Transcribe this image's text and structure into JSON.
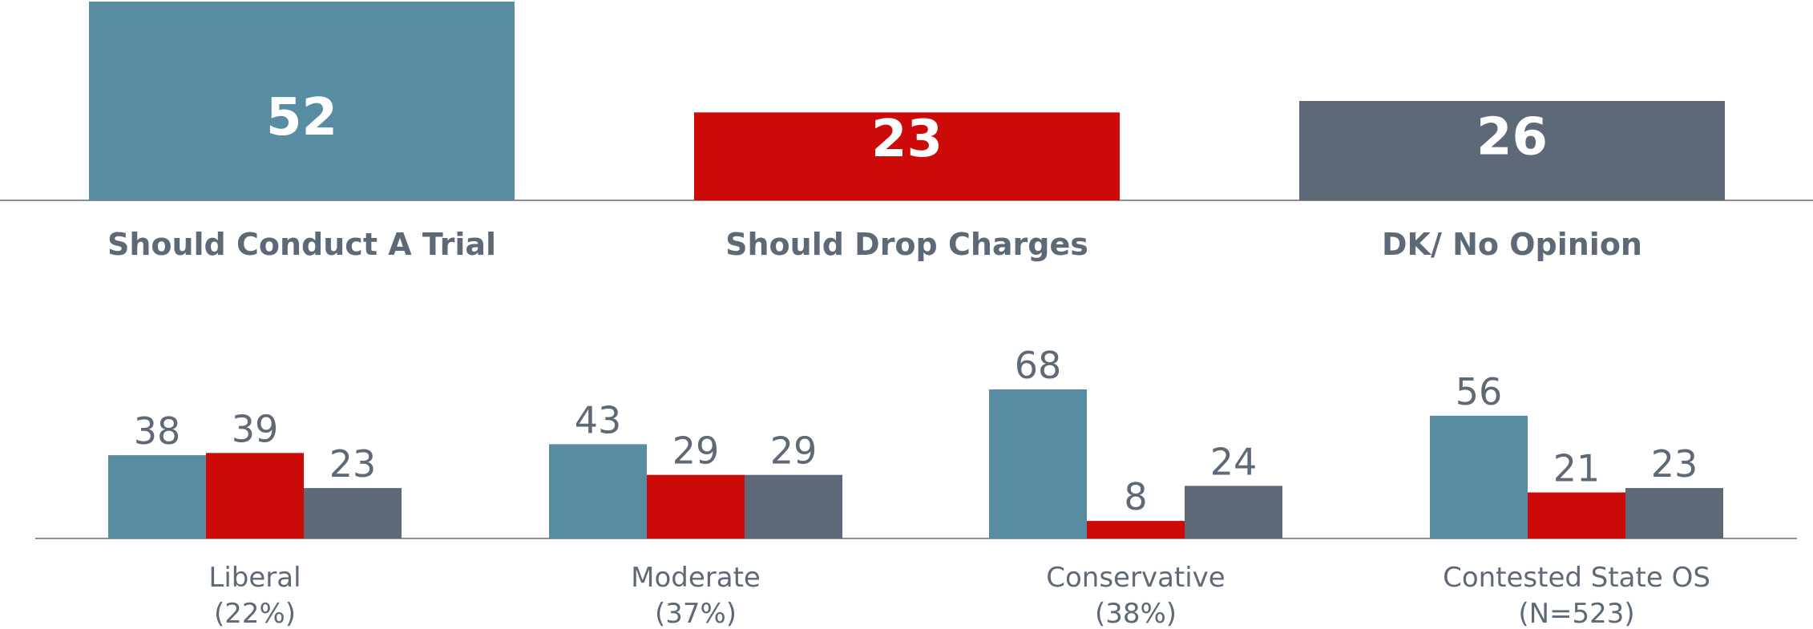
{
  "colors": {
    "trial": "#588ca2",
    "drop": "#cc0a07",
    "dk": "#5e6978",
    "text": "#5e6978",
    "axis": "#8b8f95"
  },
  "chart_data": [
    {
      "type": "bar",
      "categories": [
        "Should Conduct A Trial",
        "Should Drop Charges",
        "DK/ No Opinion"
      ],
      "values": [
        52,
        23,
        26
      ],
      "ylim": [
        0,
        52
      ],
      "grid": false
    },
    {
      "type": "bar",
      "categories": [
        "Liberal",
        "Moderate",
        "Conservative",
        "Contested State OS"
      ],
      "category_sublabels": [
        "(22%)",
        "(37%)",
        "(38%)",
        "(N=523)"
      ],
      "series": [
        {
          "values": [
            38,
            43,
            68,
            56
          ]
        },
        {
          "values": [
            39,
            29,
            8,
            21
          ]
        },
        {
          "values": [
            23,
            29,
            24,
            23
          ]
        }
      ],
      "ylim": [
        0,
        70
      ],
      "grid": false
    }
  ]
}
